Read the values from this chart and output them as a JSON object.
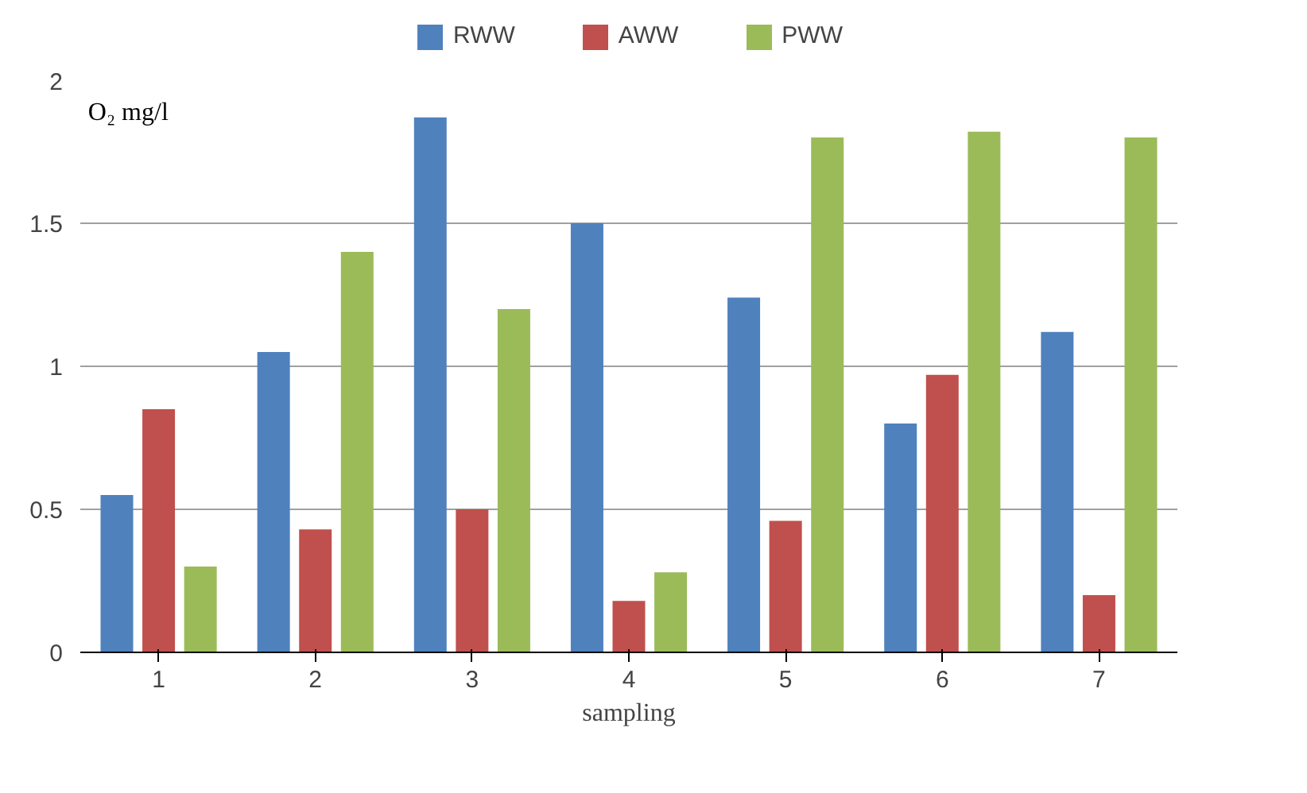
{
  "chart_data": {
    "type": "bar",
    "ylabel": "O₂ mg/l",
    "xlabel": "sampling",
    "categories": [
      "1",
      "2",
      "3",
      "4",
      "5",
      "6",
      "7"
    ],
    "series": [
      {
        "name": "RWW",
        "color": "#4f81bd",
        "values": [
          0.55,
          1.05,
          1.87,
          1.5,
          1.24,
          0.8,
          1.12
        ]
      },
      {
        "name": "AWW",
        "color": "#c0504d",
        "values": [
          0.85,
          0.43,
          0.5,
          0.18,
          0.46,
          0.97,
          0.2
        ]
      },
      {
        "name": "PWW",
        "color": "#9bbb59",
        "values": [
          0.3,
          1.4,
          1.2,
          0.28,
          1.8,
          1.82,
          1.8
        ]
      }
    ],
    "ylim": [
      0,
      2
    ],
    "yticks": [
      0,
      0.5,
      1,
      1.5,
      2
    ],
    "grid": "y",
    "legend": "top"
  }
}
